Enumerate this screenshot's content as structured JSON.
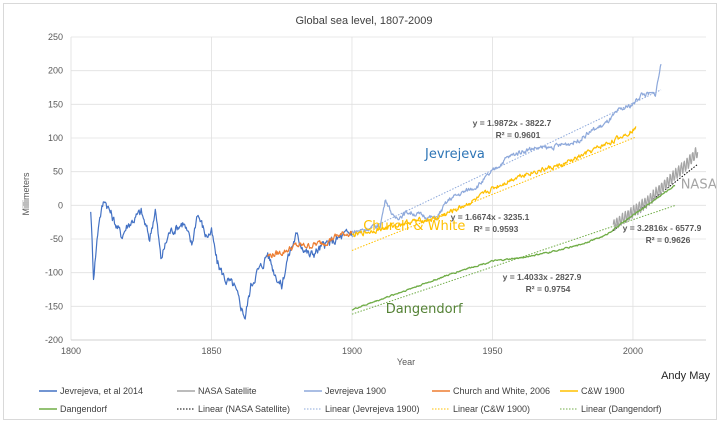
{
  "chart_data": {
    "type": "line",
    "title": "Global sea level, 1807-2009",
    "xlabel": "Year",
    "ylabel": "Millimeters",
    "credit": "Andy May",
    "xlim": [
      1800,
      2026
    ],
    "ylim": [
      -200,
      250
    ],
    "x_ticks": [
      1800,
      1850,
      1900,
      1950,
      2000
    ],
    "y_ticks": [
      250,
      200,
      150,
      100,
      50,
      0,
      -50,
      -100,
      -150,
      -200
    ],
    "grid": true,
    "legend_position": "bottom",
    "series": [
      {
        "name": "Jevrejeva, et al 2014",
        "color": "#4472c4",
        "x_range": [
          1807,
          1900
        ],
        "anchors": [
          [
            1807,
            -5
          ],
          [
            1808,
            -105
          ],
          [
            1810,
            -20
          ],
          [
            1812,
            10
          ],
          [
            1815,
            -20
          ],
          [
            1818,
            -45
          ],
          [
            1820,
            -30
          ],
          [
            1825,
            -10
          ],
          [
            1828,
            -50
          ],
          [
            1830,
            -5
          ],
          [
            1832,
            -80
          ],
          [
            1835,
            -40
          ],
          [
            1840,
            -25
          ],
          [
            1843,
            -60
          ],
          [
            1845,
            -10
          ],
          [
            1848,
            -45
          ],
          [
            1850,
            -40
          ],
          [
            1852,
            -85
          ],
          [
            1855,
            -110
          ],
          [
            1858,
            -120
          ],
          [
            1860,
            -145
          ],
          [
            1862,
            -165
          ],
          [
            1864,
            -120
          ],
          [
            1866,
            -100
          ],
          [
            1868,
            -90
          ],
          [
            1870,
            -70
          ],
          [
            1872,
            -95
          ],
          [
            1875,
            -120
          ],
          [
            1877,
            -80
          ],
          [
            1880,
            -45
          ],
          [
            1885,
            -75
          ],
          [
            1890,
            -60
          ],
          [
            1895,
            -50
          ],
          [
            1900,
            -40
          ]
        ],
        "noise": 14
      },
      {
        "name": "Church and White, 2006",
        "color": "#ed7d31",
        "x_range": [
          1870,
          1900
        ],
        "anchors": [
          [
            1870,
            -75
          ],
          [
            1875,
            -70
          ],
          [
            1880,
            -60
          ],
          [
            1885,
            -60
          ],
          [
            1890,
            -55
          ],
          [
            1895,
            -45
          ],
          [
            1900,
            -40
          ]
        ],
        "noise": 9
      },
      {
        "name": "Jevrejeva 1900",
        "color": "#8ea9db",
        "x_range": [
          1900,
          2010
        ],
        "anchors": [
          [
            1900,
            -40
          ],
          [
            1905,
            -35
          ],
          [
            1910,
            -30
          ],
          [
            1912,
            10
          ],
          [
            1915,
            -20
          ],
          [
            1920,
            -10
          ],
          [
            1925,
            -15
          ],
          [
            1930,
            -20
          ],
          [
            1933,
            0
          ],
          [
            1935,
            10
          ],
          [
            1940,
            20
          ],
          [
            1945,
            30
          ],
          [
            1950,
            50
          ],
          [
            1955,
            70
          ],
          [
            1960,
            80
          ],
          [
            1965,
            85
          ],
          [
            1970,
            85
          ],
          [
            1975,
            90
          ],
          [
            1980,
            95
          ],
          [
            1985,
            110
          ],
          [
            1990,
            120
          ],
          [
            1995,
            140
          ],
          [
            2000,
            150
          ],
          [
            2003,
            165
          ],
          [
            2008,
            165
          ],
          [
            2010,
            210
          ]
        ],
        "noise": 7
      },
      {
        "name": "C&W 1900",
        "color": "#ffc000",
        "x_range": [
          1900,
          2001
        ],
        "anchors": [
          [
            1900,
            -45
          ],
          [
            1905,
            -40
          ],
          [
            1910,
            -35
          ],
          [
            1915,
            -30
          ],
          [
            1920,
            -25
          ],
          [
            1925,
            -22
          ],
          [
            1930,
            -20
          ],
          [
            1935,
            -10
          ],
          [
            1940,
            0
          ],
          [
            1945,
            10
          ],
          [
            1950,
            25
          ],
          [
            1955,
            35
          ],
          [
            1960,
            45
          ],
          [
            1965,
            50
          ],
          [
            1970,
            55
          ],
          [
            1975,
            60
          ],
          [
            1980,
            70
          ],
          [
            1985,
            80
          ],
          [
            1990,
            90
          ],
          [
            1995,
            100
          ],
          [
            2001,
            115
          ]
        ],
        "noise": 7
      },
      {
        "name": "Dangendorf",
        "color": "#70ad47",
        "x_range": [
          1900,
          2015
        ],
        "anchors": [
          [
            1900,
            -155
          ],
          [
            1910,
            -140
          ],
          [
            1920,
            -125
          ],
          [
            1930,
            -110
          ],
          [
            1940,
            -95
          ],
          [
            1950,
            -83
          ],
          [
            1960,
            -78
          ],
          [
            1970,
            -70
          ],
          [
            1980,
            -60
          ],
          [
            1990,
            -45
          ],
          [
            1995,
            -30
          ],
          [
            2000,
            -15
          ],
          [
            2005,
            0
          ],
          [
            2010,
            15
          ],
          [
            2015,
            30
          ]
        ],
        "noise": 2
      },
      {
        "name": "NASA Satellite",
        "color": "#a5a5a5",
        "x_range": [
          1993,
          2023
        ],
        "anchors": [
          [
            1993,
            -30
          ],
          [
            2000,
            -10
          ],
          [
            2005,
            5
          ],
          [
            2010,
            25
          ],
          [
            2015,
            45
          ],
          [
            2020,
            65
          ],
          [
            2023,
            80
          ]
        ],
        "noise": 9
      }
    ],
    "trendlines": [
      {
        "name": "Linear (NASA Satellite)",
        "color": "#000000",
        "slope": 3.2816,
        "intercept": -6577.9,
        "r2": 0.9626,
        "x_range": [
          1993,
          2023
        ],
        "equation": "y = 3.2816x - 6577.9",
        "r2_label": "R² = 0.9626"
      },
      {
        "name": "Linear (Jevrejeva 1900)",
        "color": "#8ea9db",
        "slope": 1.9872,
        "intercept": -3822.7,
        "r2": 0.9601,
        "x_range": [
          1900,
          2010
        ],
        "equation": "y = 1.9872x - 3822.7",
        "r2_label": "R² = 0.9601"
      },
      {
        "name": "Linear (C&W 1900)",
        "color": "#ffc000",
        "slope": 1.6674,
        "intercept": -3235.1,
        "r2": 0.9593,
        "x_range": [
          1900,
          2001
        ],
        "equation": "y = 1.6674x - 3235.1",
        "r2_label": "R² = 0.9593"
      },
      {
        "name": "Linear (Dangendorf)",
        "color": "#70ad47",
        "slope": 1.4033,
        "intercept": -2827.9,
        "r2": 0.9754,
        "x_range": [
          1900,
          2015
        ],
        "equation": "y = 1.4033x - 2827.9",
        "r2_label": "R² = 0.9754"
      }
    ],
    "annotations": [
      {
        "text": "Jevrejeva",
        "color": "#2e75b6",
        "x": 1926,
        "y": 70
      },
      {
        "text": "Church & White",
        "color": "#ffc000",
        "x": 1904,
        "y": -37
      },
      {
        "text": "Dangendorf",
        "color": "#548235",
        "x": 1912,
        "y": -160
      },
      {
        "text": "NASA",
        "color": "#a5a5a5",
        "x": 2017,
        "y": 25
      }
    ],
    "legend": [
      {
        "label": "Jevrejeva, et al 2014",
        "color": "#4472c4",
        "style": "solid"
      },
      {
        "label": "NASA Satellite",
        "color": "#a5a5a5",
        "style": "solid"
      },
      {
        "label": "Jevrejeva 1900",
        "color": "#8ea9db",
        "style": "solid"
      },
      {
        "label": "Church and White, 2006",
        "color": "#ed7d31",
        "style": "solid"
      },
      {
        "label": "C&W 1900",
        "color": "#ffc000",
        "style": "solid"
      },
      {
        "label": "Dangendorf",
        "color": "#70ad47",
        "style": "solid"
      },
      {
        "label": "Linear (NASA Satellite)",
        "color": "#000000",
        "style": "dotted"
      },
      {
        "label": "Linear (Jevrejeva 1900)",
        "color": "#8ea9db",
        "style": "dotted"
      },
      {
        "label": "Linear (C&W 1900)",
        "color": "#ffc000",
        "style": "dotted"
      },
      {
        "label": "Linear (Dangendorf)",
        "color": "#70ad47",
        "style": "dotted"
      }
    ]
  }
}
